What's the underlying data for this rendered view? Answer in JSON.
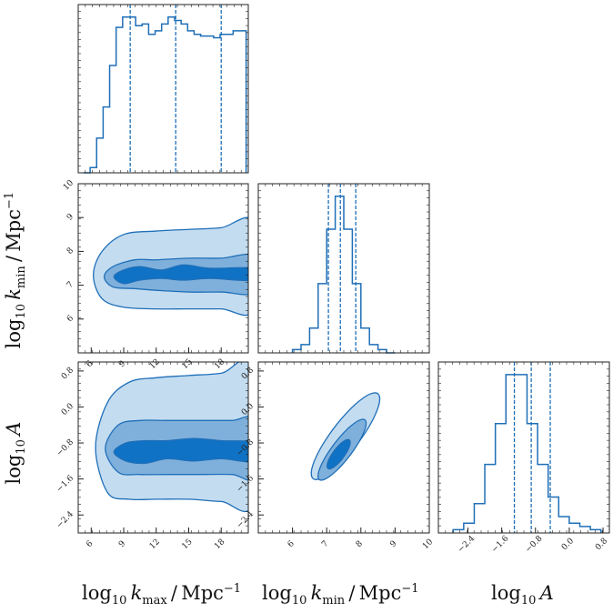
{
  "style": {
    "line_color": "#1f6fb8",
    "fill_outer": "#c3dcf0",
    "fill_mid": "#7fb0db",
    "fill_inner": "#0f72c4",
    "axis_color": "#222222"
  },
  "labels": {
    "kmax": {
      "log": "log",
      "base": "10",
      "sym": "k",
      "sub": "max",
      "unit": "Mpc",
      "exp": "−1"
    },
    "kmin": {
      "log": "log",
      "base": "10",
      "sym": "k",
      "sub": "min",
      "unit": "Mpc",
      "exp": "−1"
    },
    "A": {
      "log": "log",
      "base": "10",
      "sym": "A"
    }
  },
  "chart_data": [
    {
      "type": "histogram",
      "panel": "kmax-marginal",
      "xlim": [
        4.8,
        20.5
      ],
      "bin_edges": [
        5.3,
        5.9,
        6.5,
        7.1,
        7.7,
        8.3,
        8.9,
        9.5,
        10.1,
        10.7,
        11.3,
        11.9,
        12.5,
        13.1,
        13.7,
        14.3,
        14.9,
        15.5,
        16.1,
        16.7,
        17.3,
        17.9,
        18.5,
        19.1,
        19.7,
        20.3
      ],
      "counts": [
        0.0,
        0.03,
        0.2,
        0.38,
        0.62,
        0.84,
        0.9,
        0.9,
        0.85,
        0.86,
        0.8,
        0.82,
        0.86,
        0.9,
        0.88,
        0.86,
        0.82,
        0.8,
        0.79,
        0.79,
        0.78,
        0.8,
        0.8,
        0.82,
        0.82
      ],
      "quantile_lines": [
        9.6,
        13.8,
        18.0
      ]
    },
    {
      "type": "contour",
      "panel": "kmin-vs-kmax",
      "x": "log10 k_max / Mpc^-1",
      "y": "log10 k_min / Mpc^-1",
      "xlim": [
        4.8,
        20.5
      ],
      "ylim": [
        5.0,
        10.0
      ],
      "xticks": [
        6,
        9,
        12,
        15,
        18
      ],
      "yticks": [
        6,
        7,
        8,
        9,
        10
      ],
      "levels": [
        "outer",
        "mid",
        "inner"
      ]
    },
    {
      "type": "histogram",
      "panel": "kmin-marginal",
      "xlim": [
        5.0,
        10.0
      ],
      "bin_edges": [
        6.0,
        6.25,
        6.5,
        6.75,
        7.0,
        7.25,
        7.5,
        7.75,
        8.0,
        8.25,
        8.5,
        8.75,
        9.0
      ],
      "counts": [
        0.02,
        0.05,
        0.15,
        0.42,
        0.75,
        0.95,
        0.75,
        0.42,
        0.15,
        0.05,
        0.02,
        0.0
      ],
      "quantile_lines": [
        7.05,
        7.4,
        7.85
      ]
    },
    {
      "type": "contour",
      "panel": "A-vs-kmax",
      "x": "log10 k_max / Mpc^-1",
      "y": "log10 A",
      "xlim": [
        4.8,
        20.5
      ],
      "ylim": [
        -2.8,
        1.0
      ],
      "xticks": [
        6,
        9,
        12,
        15,
        18
      ],
      "yticks": [
        -2.4,
        -1.6,
        -0.8,
        0.0,
        0.8
      ],
      "levels": [
        "outer",
        "mid",
        "inner"
      ]
    },
    {
      "type": "contour",
      "panel": "A-vs-kmin",
      "x": "log10 k_min / Mpc^-1",
      "y": "log10 A",
      "xlim": [
        5.0,
        10.0
      ],
      "ylim": [
        -2.8,
        1.0
      ],
      "xticks": [
        6,
        7,
        8,
        9,
        10
      ],
      "yticks": [
        -2.4,
        -1.6,
        -0.8,
        0.0,
        0.8
      ],
      "levels": [
        "outer",
        "mid",
        "inner"
      ]
    },
    {
      "type": "histogram",
      "panel": "A-marginal",
      "xlim": [
        -3.1,
        0.95
      ],
      "bin_edges": [
        -2.75,
        -2.5,
        -2.25,
        -2.0,
        -1.75,
        -1.5,
        -1.25,
        -1.0,
        -0.75,
        -0.5,
        -0.25,
        0.0,
        0.25,
        0.5,
        0.75
      ],
      "counts": [
        0.02,
        0.06,
        0.18,
        0.42,
        0.67,
        0.97,
        0.97,
        0.67,
        0.42,
        0.22,
        0.1,
        0.06,
        0.04,
        0.02
      ],
      "quantile_lines": [
        -1.3,
        -0.9,
        -0.45
      ],
      "xticks": [
        -2.4,
        -1.6,
        -0.8,
        0.0,
        0.8
      ]
    }
  ]
}
